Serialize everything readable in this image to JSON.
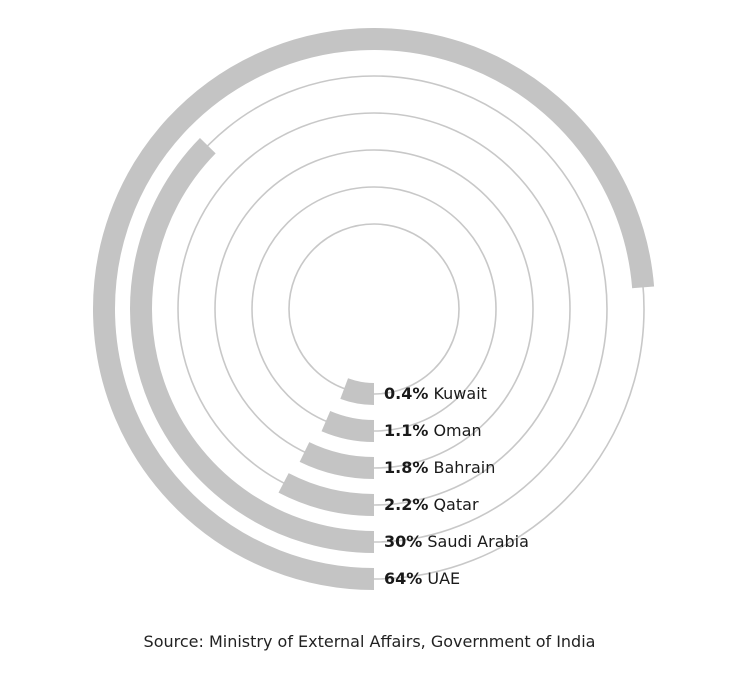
{
  "chart_data": {
    "type": "radial-bar",
    "title": "",
    "unit": "%",
    "series": [
      {
        "name": "UAE",
        "value": 64,
        "label_value": "64%"
      },
      {
        "name": "Saudi Arabia",
        "value": 30,
        "label_value": "30%"
      },
      {
        "name": "Qatar",
        "value": 2.2,
        "label_value": "2.2%"
      },
      {
        "name": "Bahrain",
        "value": 1.8,
        "label_value": "1.8%"
      },
      {
        "name": "Oman",
        "value": 1.1,
        "label_value": "1.1%"
      },
      {
        "name": "Kuwait",
        "value": 0.4,
        "label_value": "0.4%"
      }
    ],
    "colors": {
      "bar": "#c4c4c4",
      "track": "#c8c8c8",
      "text": "#1a1a1a"
    },
    "source": "Source: Ministry of External Affairs, Government of India"
  }
}
